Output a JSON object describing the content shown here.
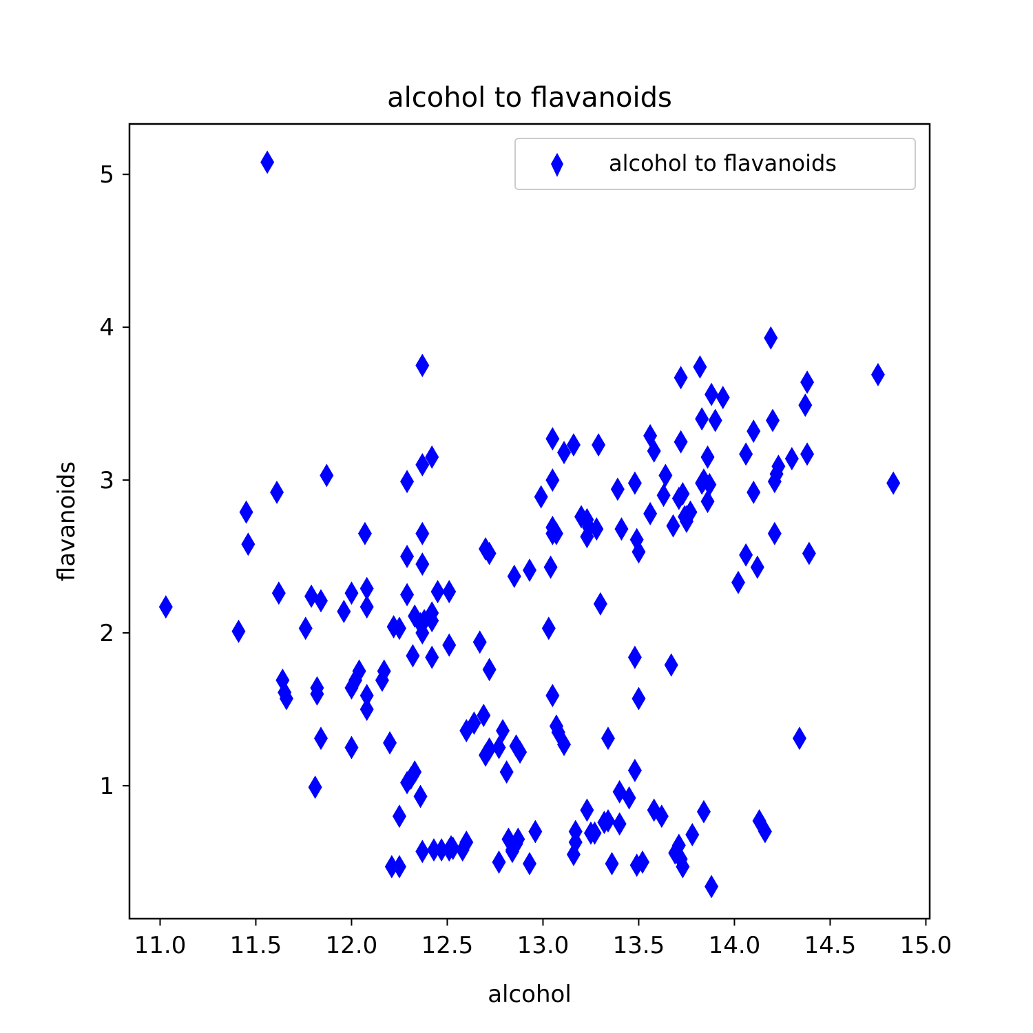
{
  "chart_data": {
    "type": "scatter",
    "title": "alcohol to flavanoids",
    "xlabel": "alcohol",
    "ylabel": "flavanoids",
    "xlim": [
      10.84,
      15.02
    ],
    "ylim": [
      0.13,
      5.33
    ],
    "xticks": [
      11.0,
      11.5,
      12.0,
      12.5,
      13.0,
      13.5,
      14.0,
      14.5,
      15.0
    ],
    "xtick_labels": [
      "11.0",
      "11.5",
      "12.0",
      "12.5",
      "13.0",
      "13.5",
      "14.0",
      "14.5",
      "15.0"
    ],
    "yticks": [
      1,
      2,
      3,
      4,
      5
    ],
    "ytick_labels": [
      "1",
      "2",
      "3",
      "4",
      "5"
    ],
    "grid": false,
    "legend_position": "top-right",
    "marker": "thin-diamond",
    "series": [
      {
        "name": "alcohol to flavanoids",
        "color": "#0000ff",
        "points": [
          [
            11.03,
            2.17
          ],
          [
            11.41,
            2.01
          ],
          [
            11.45,
            2.79
          ],
          [
            11.46,
            2.58
          ],
          [
            11.56,
            5.08
          ],
          [
            11.61,
            2.92
          ],
          [
            11.62,
            2.26
          ],
          [
            11.64,
            1.69
          ],
          [
            11.65,
            1.61
          ],
          [
            11.66,
            1.57
          ],
          [
            11.76,
            2.03
          ],
          [
            11.79,
            2.24
          ],
          [
            11.81,
            0.99
          ],
          [
            11.82,
            1.64
          ],
          [
            11.82,
            1.6
          ],
          [
            11.84,
            2.21
          ],
          [
            11.84,
            1.31
          ],
          [
            11.87,
            3.03
          ],
          [
            11.96,
            2.14
          ],
          [
            12.0,
            2.26
          ],
          [
            12.0,
            1.64
          ],
          [
            12.0,
            1.25
          ],
          [
            12.02,
            1.69
          ],
          [
            12.04,
            1.75
          ],
          [
            12.07,
            2.65
          ],
          [
            12.08,
            2.29
          ],
          [
            12.08,
            2.17
          ],
          [
            12.08,
            1.59
          ],
          [
            12.08,
            1.5
          ],
          [
            12.16,
            1.69
          ],
          [
            12.17,
            1.75
          ],
          [
            12.2,
            1.28
          ],
          [
            12.21,
            0.47
          ],
          [
            12.22,
            2.04
          ],
          [
            12.25,
            2.03
          ],
          [
            12.25,
            0.8
          ],
          [
            12.25,
            0.47
          ],
          [
            12.29,
            2.99
          ],
          [
            12.29,
            2.5
          ],
          [
            12.29,
            2.25
          ],
          [
            12.29,
            1.02
          ],
          [
            12.31,
            1.05
          ],
          [
            12.32,
            1.85
          ],
          [
            12.33,
            2.11
          ],
          [
            12.33,
            1.09
          ],
          [
            12.36,
            2.06
          ],
          [
            12.36,
            0.93
          ],
          [
            12.37,
            3.75
          ],
          [
            12.37,
            3.1
          ],
          [
            12.37,
            2.65
          ],
          [
            12.37,
            2.45
          ],
          [
            12.37,
            2.0
          ],
          [
            12.37,
            0.57
          ],
          [
            12.38,
            2.08
          ],
          [
            12.42,
            3.15
          ],
          [
            12.42,
            2.13
          ],
          [
            12.42,
            2.08
          ],
          [
            12.42,
            1.84
          ],
          [
            12.43,
            0.58
          ],
          [
            12.45,
            2.27
          ],
          [
            12.47,
            0.58
          ],
          [
            12.51,
            2.27
          ],
          [
            12.51,
            1.92
          ],
          [
            12.51,
            0.58
          ],
          [
            12.52,
            0.6
          ],
          [
            12.53,
            0.59
          ],
          [
            12.58,
            0.58
          ],
          [
            12.6,
            0.63
          ],
          [
            12.6,
            1.36
          ],
          [
            12.64,
            1.41
          ],
          [
            12.67,
            1.94
          ],
          [
            12.69,
            1.46
          ],
          [
            12.7,
            2.55
          ],
          [
            12.7,
            1.2
          ],
          [
            12.72,
            2.52
          ],
          [
            12.72,
            1.76
          ],
          [
            12.72,
            1.24
          ],
          [
            12.77,
            0.5
          ],
          [
            12.77,
            1.25
          ],
          [
            12.79,
            1.36
          ],
          [
            12.81,
            1.09
          ],
          [
            12.82,
            0.65
          ],
          [
            12.84,
            0.57
          ],
          [
            12.84,
            0.58
          ],
          [
            12.85,
            2.37
          ],
          [
            12.86,
            0.62
          ],
          [
            12.86,
            1.26
          ],
          [
            12.87,
            0.65
          ],
          [
            12.88,
            1.22
          ],
          [
            12.93,
            0.49
          ],
          [
            12.93,
            2.41
          ],
          [
            12.96,
            0.7
          ],
          [
            12.99,
            2.89
          ],
          [
            13.03,
            2.03
          ],
          [
            13.04,
            2.43
          ],
          [
            13.05,
            3.27
          ],
          [
            13.05,
            3.0
          ],
          [
            13.05,
            2.69
          ],
          [
            13.05,
            2.65
          ],
          [
            13.05,
            1.59
          ],
          [
            13.07,
            2.65
          ],
          [
            13.07,
            1.39
          ],
          [
            13.08,
            1.35
          ],
          [
            13.11,
            1.27
          ],
          [
            13.11,
            3.18
          ],
          [
            13.16,
            3.23
          ],
          [
            13.16,
            0.55
          ],
          [
            13.17,
            0.7
          ],
          [
            13.17,
            0.63
          ],
          [
            13.2,
            2.76
          ],
          [
            13.23,
            2.74
          ],
          [
            13.23,
            2.63
          ],
          [
            13.23,
            0.84
          ],
          [
            13.24,
            2.69
          ],
          [
            13.25,
            0.69
          ],
          [
            13.27,
            0.69
          ],
          [
            13.28,
            2.68
          ],
          [
            13.29,
            3.23
          ],
          [
            13.3,
            2.19
          ],
          [
            13.32,
            0.76
          ],
          [
            13.34,
            0.77
          ],
          [
            13.34,
            1.31
          ],
          [
            13.36,
            0.49
          ],
          [
            13.39,
            2.94
          ],
          [
            13.4,
            0.96
          ],
          [
            13.4,
            0.75
          ],
          [
            13.41,
            2.68
          ],
          [
            13.45,
            0.92
          ],
          [
            13.48,
            2.98
          ],
          [
            13.48,
            1.1
          ],
          [
            13.48,
            1.84
          ],
          [
            13.49,
            0.48
          ],
          [
            13.49,
            2.61
          ],
          [
            13.5,
            2.53
          ],
          [
            13.5,
            1.57
          ],
          [
            13.52,
            0.5
          ],
          [
            13.56,
            3.29
          ],
          [
            13.56,
            2.78
          ],
          [
            13.58,
            3.19
          ],
          [
            13.58,
            0.84
          ],
          [
            13.62,
            0.8
          ],
          [
            13.63,
            2.9
          ],
          [
            13.64,
            3.03
          ],
          [
            13.67,
            1.79
          ],
          [
            13.68,
            2.7
          ],
          [
            13.69,
            0.56
          ],
          [
            13.71,
            2.88
          ],
          [
            13.71,
            0.61
          ],
          [
            13.72,
            3.67
          ],
          [
            13.72,
            3.25
          ],
          [
            13.72,
            0.52
          ],
          [
            13.73,
            0.47
          ],
          [
            13.73,
            2.91
          ],
          [
            13.74,
            2.76
          ],
          [
            13.75,
            2.76
          ],
          [
            13.75,
            2.73
          ],
          [
            13.77,
            2.79
          ],
          [
            13.78,
            0.68
          ],
          [
            13.82,
            3.74
          ],
          [
            13.83,
            3.4
          ],
          [
            13.83,
            2.98
          ],
          [
            13.84,
            0.83
          ],
          [
            13.84,
            3.0
          ],
          [
            13.86,
            3.15
          ],
          [
            13.86,
            2.86
          ],
          [
            13.87,
            2.97
          ],
          [
            13.88,
            3.56
          ],
          [
            13.88,
            0.34
          ],
          [
            13.9,
            3.39
          ],
          [
            13.94,
            3.54
          ],
          [
            14.02,
            2.33
          ],
          [
            14.06,
            3.17
          ],
          [
            14.06,
            2.51
          ],
          [
            14.1,
            3.32
          ],
          [
            14.1,
            2.92
          ],
          [
            14.12,
            2.43
          ],
          [
            14.13,
            0.77
          ],
          [
            14.16,
            0.7
          ],
          [
            14.19,
            3.93
          ],
          [
            14.2,
            3.39
          ],
          [
            14.21,
            2.99
          ],
          [
            14.21,
            2.65
          ],
          [
            14.22,
            3.04
          ],
          [
            14.23,
            3.09
          ],
          [
            14.3,
            3.14
          ],
          [
            14.34,
            1.31
          ],
          [
            14.37,
            3.49
          ],
          [
            14.38,
            3.64
          ],
          [
            14.38,
            3.17
          ],
          [
            14.39,
            2.52
          ],
          [
            14.75,
            3.69
          ],
          [
            14.83,
            2.98
          ]
        ]
      }
    ]
  }
}
